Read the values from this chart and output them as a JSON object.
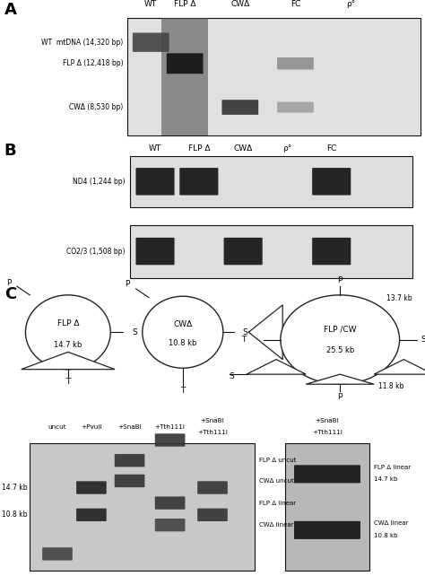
{
  "fig_width": 4.74,
  "fig_height": 6.42,
  "bg_color": "#ffffff",
  "panel_A": {
    "label": "A",
    "col_labels": [
      "WT",
      "FLP Δ",
      "CWΔ",
      "FC",
      "ρ°"
    ],
    "row_labels": [
      "WT  mtDNA (14,320 bp)",
      "FLP Δ (12,418 bp)",
      "CWΔ (8,530 bp)"
    ]
  },
  "panel_B": {
    "label": "B",
    "col_labels": [
      "WT",
      "FLP Δ",
      "CWΔ",
      "ρ°",
      "FC"
    ],
    "row_labels": [
      "ND4 (1,244 bp)",
      "CO2/3 (1,508 bp)"
    ]
  },
  "panel_C": {
    "label": "C",
    "gel_col_labels": [
      "uncut",
      "+PvuII",
      "+SnaBI",
      "+Tth111I",
      "+SnaBI\n+Tth111I"
    ],
    "gel_right_labels": [
      "FLP Δ uncut",
      "CWΔ uncut",
      "FLP Δ linear",
      "CWΔ linear"
    ],
    "gel2_col_label": "+SnaBI\n+Tth111I",
    "gel2_right_labels": [
      "FLP Δ linear\n14.7 kb",
      "CWΔ linear\n10.8 kb"
    ],
    "gel_left_labels": [
      "14.7 kb",
      "10.8 kb"
    ]
  }
}
